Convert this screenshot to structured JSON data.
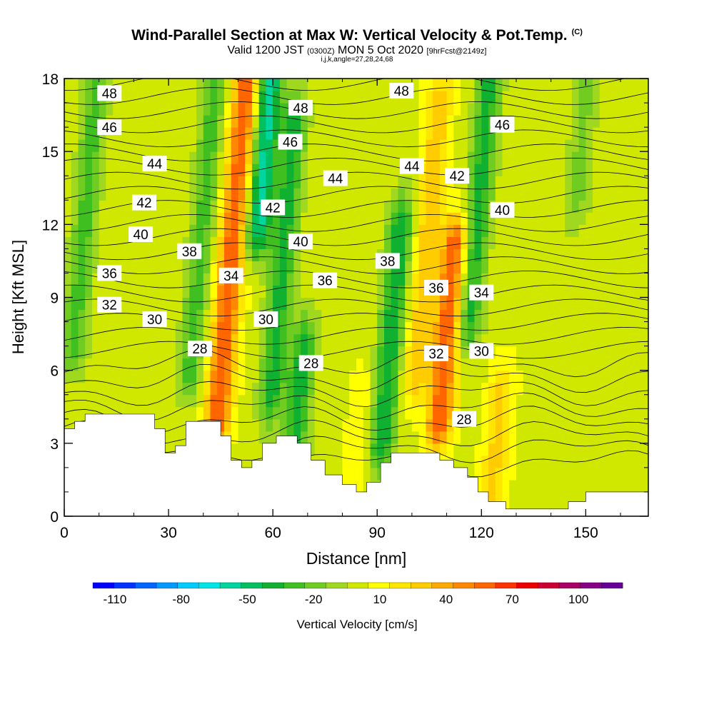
{
  "titles": {
    "main": "Wind-Parallel Section at Max W: Vertical Velocity & Pot.Temp.",
    "copyright": "(C)",
    "valid_prefix": "Valid 1200 JST",
    "valid_utc": "(0300Z)",
    "valid_date": "MON 5 Oct 2020",
    "forecast": "[9hrFcst@2149z]",
    "indices": "i,j,k,angle=27,28,24,68"
  },
  "chart_data": {
    "type": "heatmap",
    "xlabel": "Distance [nm]",
    "ylabel": "Height [Kft MSL]",
    "xlim": [
      0,
      168
    ],
    "ylim": [
      0,
      18
    ],
    "xticks": [
      0,
      30,
      60,
      90,
      120,
      150
    ],
    "yticks": [
      0,
      3,
      6,
      9,
      12,
      15,
      18
    ],
    "colorbar": {
      "label": "Vertical Velocity [cm/s]",
      "range": [
        -120,
        120
      ],
      "ticks": [
        -110,
        -80,
        -50,
        -20,
        10,
        40,
        70,
        100
      ],
      "colors": [
        "#0000ff",
        "#0033ff",
        "#0066ff",
        "#0099ff",
        "#00ccff",
        "#00e5e5",
        "#00d4a0",
        "#00c060",
        "#10b030",
        "#40c020",
        "#70cc20",
        "#a0d820",
        "#d0e800",
        "#ffff00",
        "#ffe600",
        "#ffcc00",
        "#ffaa00",
        "#ff8800",
        "#ff6600",
        "#ff3300",
        "#ee0000",
        "#cc0033",
        "#aa0066",
        "#880088",
        "#660099"
      ]
    },
    "velocity_cores": [
      {
        "x": 4,
        "bottom": 7,
        "top": 17.5,
        "w": -30
      },
      {
        "x": 38,
        "bottom": 6,
        "top": 18,
        "w": -30
      },
      {
        "x": 47,
        "bottom": 4,
        "top": 18,
        "w": 60
      },
      {
        "x": 54,
        "bottom": 12,
        "top": 18,
        "w": -60
      },
      {
        "x": 62,
        "bottom": 5,
        "top": 16,
        "w": -40
      },
      {
        "x": 70,
        "bottom": 2,
        "top": 7,
        "w": -40
      },
      {
        "x": 88,
        "bottom": 2,
        "top": 5,
        "w": 10
      },
      {
        "x": 95,
        "bottom": 3,
        "top": 12,
        "w": -45
      },
      {
        "x": 103,
        "bottom": 6,
        "top": 17,
        "w": 30
      },
      {
        "x": 111,
        "bottom": 4,
        "top": 11,
        "w": 60
      },
      {
        "x": 117,
        "bottom": 8,
        "top": 18,
        "w": -40
      },
      {
        "x": 128,
        "bottom": 1,
        "top": 5,
        "w": 25
      },
      {
        "x": 145,
        "bottom": 13,
        "top": 18,
        "w": -20
      }
    ],
    "terrain": [
      [
        0,
        3.6
      ],
      [
        3,
        3.6
      ],
      [
        3,
        3.9
      ],
      [
        6,
        3.9
      ],
      [
        6,
        4.2
      ],
      [
        26,
        4.2
      ],
      [
        26,
        3.6
      ],
      [
        29,
        3.6
      ],
      [
        29,
        2.6
      ],
      [
        32,
        2.6
      ],
      [
        32,
        2.9
      ],
      [
        35,
        2.9
      ],
      [
        35,
        3.9
      ],
      [
        45,
        3.9
      ],
      [
        45,
        3.3
      ],
      [
        48,
        3.3
      ],
      [
        48,
        2.3
      ],
      [
        51,
        2.3
      ],
      [
        51,
        2.0
      ],
      [
        54,
        2.0
      ],
      [
        54,
        2.3
      ],
      [
        57,
        2.3
      ],
      [
        57,
        3.0
      ],
      [
        61,
        3.0
      ],
      [
        61,
        3.3
      ],
      [
        67,
        3.3
      ],
      [
        67,
        3.0
      ],
      [
        71,
        3.0
      ],
      [
        71,
        2.3
      ],
      [
        75,
        2.3
      ],
      [
        75,
        1.7
      ],
      [
        80,
        1.7
      ],
      [
        80,
        1.3
      ],
      [
        84,
        1.3
      ],
      [
        84,
        1.0
      ],
      [
        87,
        1.0
      ],
      [
        87,
        1.4
      ],
      [
        91,
        1.4
      ],
      [
        91,
        2.2
      ],
      [
        94,
        2.2
      ],
      [
        94,
        2.6
      ],
      [
        108,
        2.6
      ],
      [
        108,
        2.3
      ],
      [
        112,
        2.3
      ],
      [
        112,
        2.0
      ],
      [
        116,
        2.0
      ],
      [
        116,
        1.6
      ],
      [
        119,
        1.6
      ],
      [
        119,
        1.0
      ],
      [
        122,
        1.0
      ],
      [
        122,
        0.6
      ],
      [
        127,
        0.6
      ],
      [
        127,
        0.3
      ],
      [
        145,
        0.3
      ],
      [
        145,
        0.6
      ],
      [
        150,
        0.6
      ],
      [
        150,
        1.0
      ],
      [
        168,
        1.0
      ]
    ],
    "contour_labels": [
      {
        "text": "48",
        "x": 13,
        "y": 17.4
      },
      {
        "text": "46",
        "x": 13,
        "y": 16.0
      },
      {
        "text": "44",
        "x": 26,
        "y": 14.5
      },
      {
        "text": "42",
        "x": 23,
        "y": 12.9
      },
      {
        "text": "40",
        "x": 22,
        "y": 11.6
      },
      {
        "text": "38",
        "x": 36,
        "y": 10.9
      },
      {
        "text": "36",
        "x": 13,
        "y": 10.0
      },
      {
        "text": "34",
        "x": 48,
        "y": 9.9
      },
      {
        "text": "32",
        "x": 13,
        "y": 8.7
      },
      {
        "text": "30",
        "x": 26,
        "y": 8.1
      },
      {
        "text": "28",
        "x": 39,
        "y": 6.9
      },
      {
        "text": "48",
        "x": 68,
        "y": 16.8
      },
      {
        "text": "46",
        "x": 65,
        "y": 15.4
      },
      {
        "text": "42",
        "x": 60,
        "y": 12.7
      },
      {
        "text": "40",
        "x": 68,
        "y": 11.3
      },
      {
        "text": "36",
        "x": 75,
        "y": 9.7
      },
      {
        "text": "30",
        "x": 58,
        "y": 8.1
      },
      {
        "text": "28",
        "x": 71,
        "y": 6.3
      },
      {
        "text": "44",
        "x": 78,
        "y": 13.9
      },
      {
        "text": "48",
        "x": 97,
        "y": 17.5
      },
      {
        "text": "44",
        "x": 100,
        "y": 14.4
      },
      {
        "text": "42",
        "x": 113,
        "y": 14.0
      },
      {
        "text": "40",
        "x": 126,
        "y": 12.6
      },
      {
        "text": "38",
        "x": 93,
        "y": 10.5
      },
      {
        "text": "36",
        "x": 107,
        "y": 9.4
      },
      {
        "text": "34",
        "x": 120,
        "y": 9.2
      },
      {
        "text": "32",
        "x": 107,
        "y": 6.7
      },
      {
        "text": "30",
        "x": 120,
        "y": 6.8
      },
      {
        "text": "28",
        "x": 115,
        "y": 4.0
      },
      {
        "text": "46",
        "x": 126,
        "y": 16.1
      }
    ]
  }
}
